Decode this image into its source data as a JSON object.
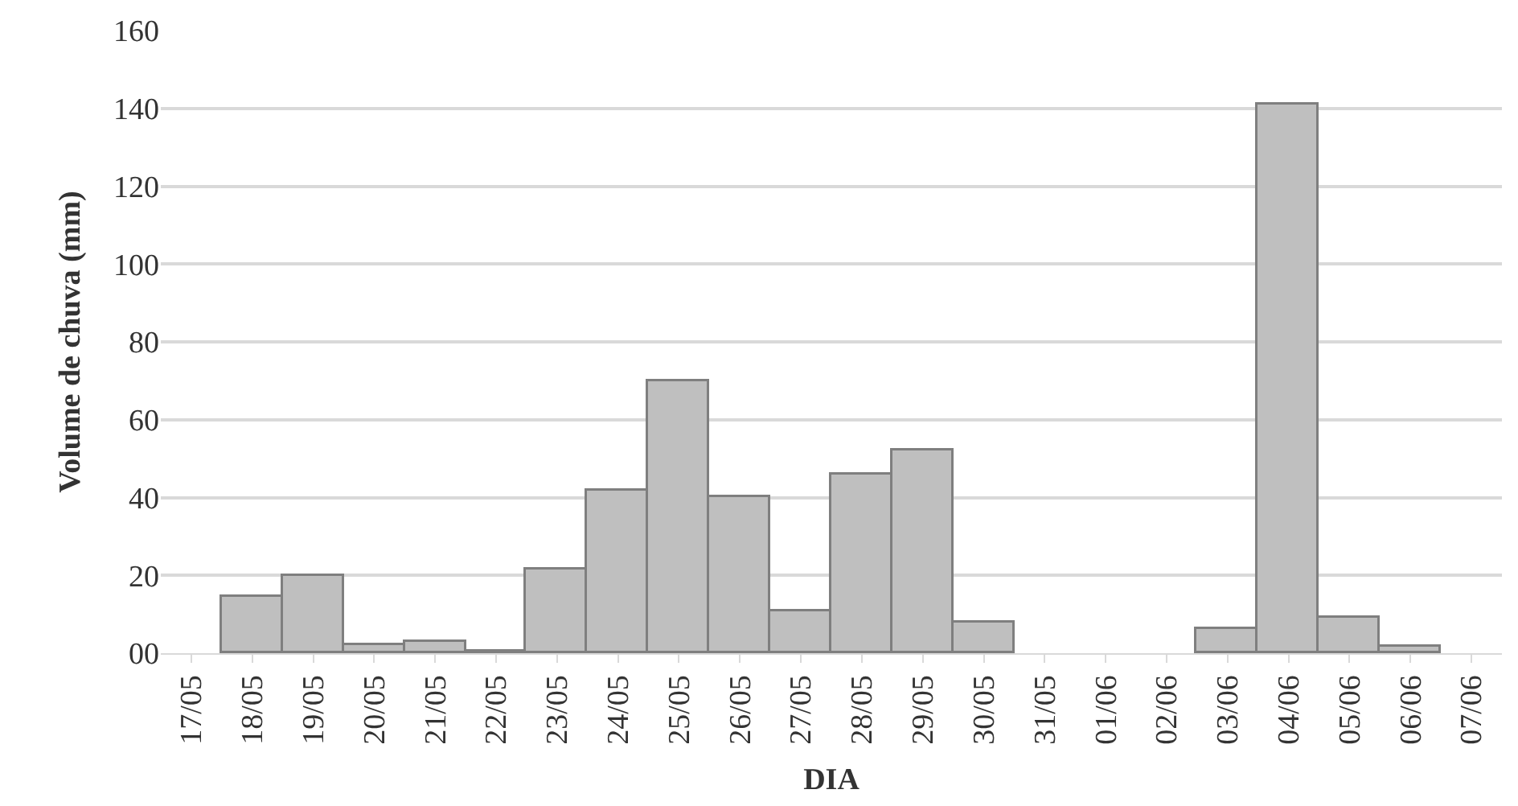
{
  "chart_data": {
    "type": "bar",
    "xlabel": "DIA",
    "ylabel": "Volume de chuva (mm)",
    "categories": [
      "17/05",
      "18/05",
      "19/05",
      "20/05",
      "21/05",
      "22/05",
      "23/05",
      "24/05",
      "25/05",
      "26/05",
      "27/05",
      "28/05",
      "29/05",
      "30/05",
      "31/05",
      "01/06",
      "02/06",
      "03/06",
      "04/06",
      "05/06",
      "06/06",
      "07/06"
    ],
    "values": [
      0,
      14.5,
      20,
      2.1,
      3.1,
      0.3,
      21.4,
      41.9,
      70,
      39.9,
      10.7,
      46,
      51.9,
      7.9,
      0,
      0,
      0,
      6.4,
      140.9,
      9.3,
      1.7,
      0
    ],
    "color": "#bfbfbf",
    "ylim": [
      0,
      160
    ],
    "yticks": [
      {
        "value": 0,
        "label": "00"
      },
      20,
      40,
      60,
      80,
      100,
      120,
      140,
      160
    ],
    "grid": "y"
  }
}
